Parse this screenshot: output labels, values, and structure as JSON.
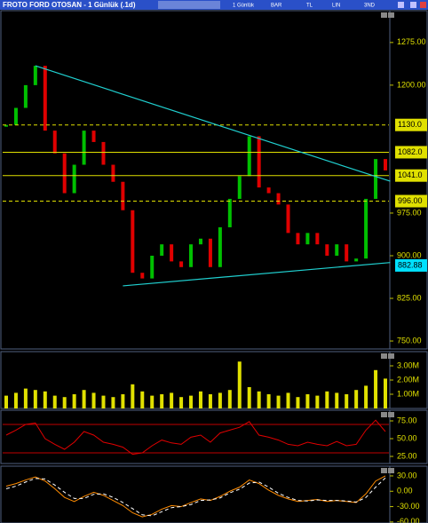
{
  "window": {
    "title": "FROTO FORD OTOSAN - 1 Günlük (.1d)",
    "toolbar": [
      "1 Günlük",
      "BAR",
      "TL",
      "LIN",
      "3ND"
    ]
  },
  "chart_data": [
    {
      "type": "candle",
      "name": "price",
      "values": [
        1130,
        1160,
        1200,
        1234,
        1120,
        1080,
        1010,
        1060,
        1120,
        1100,
        1060,
        1030,
        980,
        870,
        860,
        900,
        920,
        890,
        880,
        920,
        930,
        880,
        950,
        1000,
        1040,
        1110,
        1020,
        1010,
        990,
        940,
        920,
        940,
        920,
        900,
        920,
        890,
        895,
        1000,
        1070,
        1050
      ],
      "up_color": "#00c000",
      "down_color": "#e00000",
      "ylim": [
        736,
        1331
      ],
      "yticks": [
        {
          "value": 1275,
          "label": "1275.00"
        },
        {
          "value": 1200,
          "label": "1200.00"
        },
        {
          "value": 975,
          "label": "975.00"
        },
        {
          "value": 900,
          "label": "900.00"
        },
        {
          "value": 825,
          "label": "825.00"
        },
        {
          "value": 750,
          "label": "750.00"
        }
      ],
      "levels": [
        {
          "value": 1130,
          "label": "1130.0",
          "style": "dashed",
          "color": "#e0e000"
        },
        {
          "value": 1082,
          "label": "1082.0",
          "style": "solid",
          "color": "#e0e000"
        },
        {
          "value": 1041,
          "label": "1041.0",
          "style": "solid",
          "color": "#e0e000"
        },
        {
          "value": 996,
          "label": "996.00",
          "style": "dashed",
          "color": "#e0e000"
        },
        {
          "value": 882.88,
          "label": "882.88",
          "style": "none",
          "color": "#00e0ff"
        }
      ],
      "trendlines": [
        {
          "x": [
            3,
            39.5
          ],
          "y": [
            1234,
            1031
          ],
          "color": "#20d0d0"
        },
        {
          "x": [
            12,
            39.5
          ],
          "y": [
            847,
            888
          ],
          "color": "#20d0d0"
        }
      ]
    },
    {
      "type": "volume",
      "name": "volume",
      "values": [
        900000,
        1100000,
        1400000,
        1300000,
        1200000,
        900000,
        800000,
        1000000,
        1300000,
        1100000,
        900000,
        800000,
        1000000,
        1700000,
        1200000,
        900000,
        1000000,
        1100000,
        800000,
        900000,
        1200000,
        1000000,
        1100000,
        1300000,
        3300000,
        1500000,
        1200000,
        1000000,
        900000,
        1100000,
        800000,
        1000000,
        900000,
        1200000,
        1100000,
        1000000,
        1300000,
        1600000,
        2700000,
        2100000
      ],
      "color": "#e0e000",
      "ylim": [
        0,
        4000000
      ],
      "yticks": [
        {
          "value": 3000000,
          "label": "3.00M"
        },
        {
          "value": 2000000,
          "label": "2.00M"
        },
        {
          "value": 1000000,
          "label": "1.00M"
        }
      ]
    },
    {
      "type": "line",
      "name": "rsi",
      "series": [
        {
          "values": [
            55,
            62,
            70,
            72,
            50,
            42,
            35,
            45,
            60,
            55,
            45,
            42,
            38,
            28,
            30,
            40,
            48,
            44,
            42,
            52,
            55,
            45,
            58,
            62,
            66,
            74,
            55,
            52,
            48,
            42,
            40,
            45,
            42,
            40,
            46,
            40,
            42,
            62,
            76,
            60
          ],
          "color": "#e00000",
          "dash": false
        }
      ],
      "levels": [
        {
          "value": 70,
          "color": "#c00000"
        },
        {
          "value": 30,
          "color": "#c00000"
        }
      ],
      "ylim": [
        15,
        90
      ],
      "yticks": [
        {
          "value": 75,
          "label": "75.00"
        },
        {
          "value": 50,
          "label": "50.00"
        },
        {
          "value": 25,
          "label": "25.00"
        }
      ]
    },
    {
      "type": "line",
      "name": "oscillator",
      "series": [
        {
          "values": [
            10,
            15,
            22,
            28,
            20,
            5,
            -12,
            -20,
            -10,
            -2,
            -8,
            -18,
            -28,
            -42,
            -50,
            -45,
            -35,
            -28,
            -30,
            -22,
            -15,
            -18,
            -10,
            0,
            8,
            22,
            15,
            2,
            -8,
            -15,
            -20,
            -18,
            -16,
            -20,
            -18,
            -20,
            -22,
            -5,
            20,
            30
          ],
          "color": "#ff8c00",
          "dash": false
        },
        {
          "values": [
            5,
            10,
            18,
            25,
            24,
            12,
            -2,
            -14,
            -14,
            -6,
            -5,
            -12,
            -22,
            -34,
            -46,
            -48,
            -40,
            -32,
            -30,
            -26,
            -18,
            -17,
            -13,
            -3,
            4,
            16,
            18,
            8,
            -4,
            -12,
            -18,
            -19,
            -17,
            -18,
            -18,
            -19,
            -21,
            -12,
            8,
            26
          ],
          "color": "#ffffff",
          "dash": true
        }
      ],
      "ylim": [
        -62,
        49
      ],
      "yticks": [
        {
          "value": 30,
          "label": "30.00"
        },
        {
          "value": 0,
          "label": "0.00"
        },
        {
          "value": -30,
          "label": "-30.00"
        },
        {
          "value": -60,
          "label": "-60.00"
        }
      ]
    }
  ]
}
